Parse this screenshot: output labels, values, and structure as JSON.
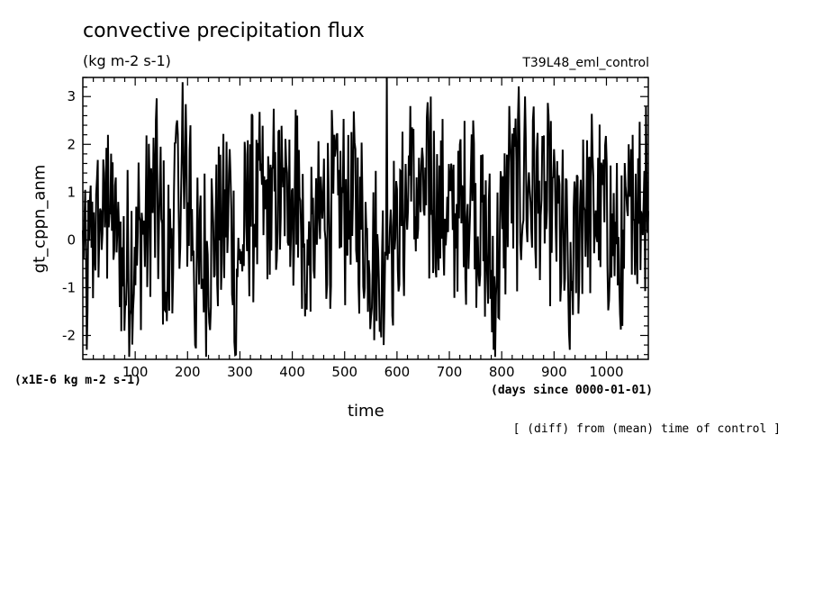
{
  "header": {
    "title": "convective precipitation flux",
    "units": "(kg m-2 s-1)",
    "run_name": "T39L48_eml_control"
  },
  "chart_data": {
    "type": "line",
    "title": "convective precipitation flux",
    "subtitle": "(kg m-2 s-1)",
    "xlabel": "time",
    "ylabel": "gt_cppn_anm",
    "x_unit_note": "(days since 0000-01-01)",
    "y_scale_note": "(x1E-6 kg m-2 s-1)",
    "footnote": "[ (diff) from (mean) time of control ]",
    "xlim": [
      0,
      1080
    ],
    "ylim": [
      -2.5,
      3.4
    ],
    "x_ticks": [
      100,
      200,
      300,
      400,
      500,
      600,
      700,
      800,
      900,
      1000
    ],
    "y_ticks": [
      -2,
      -1,
      0,
      1,
      2,
      3
    ],
    "grid": false,
    "series": [
      {
        "name": "",
        "x_step": 1.5,
        "x_start": 0,
        "key_values": [
          {
            "x": 0,
            "y": 0.2
          },
          {
            "x": 8,
            "y": -2.3
          },
          {
            "x": 18,
            "y": 0.8
          },
          {
            "x": 35,
            "y": 0.6
          },
          {
            "x": 48,
            "y": 2.2
          },
          {
            "x": 80,
            "y": -1.9
          },
          {
            "x": 130,
            "y": 1.5
          },
          {
            "x": 140,
            "y": 2.5
          },
          {
            "x": 160,
            "y": -1.7
          },
          {
            "x": 180,
            "y": 2.5
          },
          {
            "x": 190,
            "y": 3.3
          },
          {
            "x": 205,
            "y": 2.4
          },
          {
            "x": 215,
            "y": -2.2
          },
          {
            "x": 280,
            "y": 1.9
          },
          {
            "x": 292,
            "y": -2.4
          },
          {
            "x": 320,
            "y": 2.0
          },
          {
            "x": 340,
            "y": 1.6
          },
          {
            "x": 375,
            "y": 2.3
          },
          {
            "x": 395,
            "y": 2.1
          },
          {
            "x": 410,
            "y": 2.6
          },
          {
            "x": 425,
            "y": -1.6
          },
          {
            "x": 460,
            "y": 1.7
          },
          {
            "x": 480,
            "y": 2.2
          },
          {
            "x": 520,
            "y": 1.9
          },
          {
            "x": 575,
            "y": -2.2
          },
          {
            "x": 580,
            "y": 3.4
          },
          {
            "x": 595,
            "y": -0.2
          },
          {
            "x": 625,
            "y": 2.8
          },
          {
            "x": 650,
            "y": 1.7
          },
          {
            "x": 665,
            "y": 3.0
          },
          {
            "x": 700,
            "y": 1.2
          },
          {
            "x": 745,
            "y": 2.5
          },
          {
            "x": 785,
            "y": -2.3
          },
          {
            "x": 815,
            "y": 2.8
          },
          {
            "x": 845,
            "y": 3.0
          },
          {
            "x": 860,
            "y": 2.5
          },
          {
            "x": 900,
            "y": 1.9
          },
          {
            "x": 930,
            "y": -2.3
          },
          {
            "x": 955,
            "y": 2.1
          },
          {
            "x": 1000,
            "y": 1.6
          },
          {
            "x": 1030,
            "y": -1.8
          },
          {
            "x": 1050,
            "y": 2.2
          },
          {
            "x": 1075,
            "y": 2.8
          }
        ]
      }
    ]
  }
}
